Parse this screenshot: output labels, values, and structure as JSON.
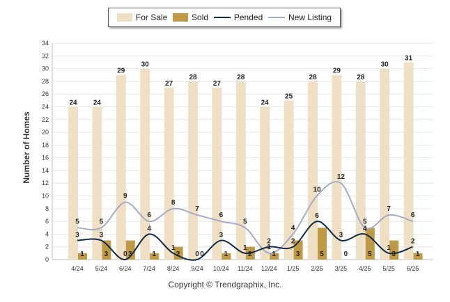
{
  "legend": {
    "items": [
      {
        "label": "For Sale",
        "color": "#efdfc4",
        "kind": "box",
        "icon": "for-sale-swatch"
      },
      {
        "label": "Sold",
        "color": "#bf9a46",
        "kind": "box",
        "icon": "sold-swatch"
      },
      {
        "label": "Pended",
        "color": "#0f2a47",
        "kind": "line",
        "icon": "pended-swatch"
      },
      {
        "label": "New Listing",
        "color": "#a3abc5",
        "kind": "line",
        "icon": "new-listing-swatch"
      }
    ]
  },
  "footer": {
    "copyright": "Copyright © Trendgraphix, Inc."
  },
  "chart_data": {
    "type": "bar",
    "ylabel": "Number of Homes",
    "xlabel": "",
    "ylim": [
      0,
      34
    ],
    "yticks": [
      0,
      2,
      4,
      6,
      8,
      10,
      12,
      14,
      16,
      18,
      20,
      22,
      24,
      26,
      28,
      30,
      32,
      34
    ],
    "grid": true,
    "legend_position": "top-center",
    "categories": [
      "4/24",
      "5/24",
      "6/24",
      "7/24",
      "8/24",
      "9/24",
      "10/24",
      "11/24",
      "12/24",
      "1/25",
      "2/25",
      "3/25",
      "4/25",
      "5/25",
      "6/25"
    ],
    "series": [
      {
        "name": "For Sale",
        "type": "bar",
        "color": "#efdfc4",
        "values": [
          24,
          24,
          29,
          30,
          27,
          28,
          27,
          28,
          24,
          25,
          28,
          29,
          28,
          30,
          31
        ]
      },
      {
        "name": "Sold",
        "type": "bar",
        "color": "#bf9a46",
        "values": [
          1,
          3,
          3,
          1,
          2,
          0,
          1,
          2,
          1,
          3,
          5,
          0,
          5,
          3,
          1
        ]
      },
      {
        "name": "Pended",
        "type": "line",
        "color": "#0f2a47",
        "values": [
          3,
          3,
          0,
          4,
          1,
          0,
          3,
          1,
          2,
          2,
          6,
          3,
          4,
          1,
          2
        ]
      },
      {
        "name": "New Listing",
        "type": "line",
        "color": "#a3abc5",
        "values": [
          5,
          5,
          9,
          6,
          8,
          7,
          6,
          5,
          1,
          4,
          10,
          12,
          5,
          7,
          6
        ]
      }
    ]
  }
}
